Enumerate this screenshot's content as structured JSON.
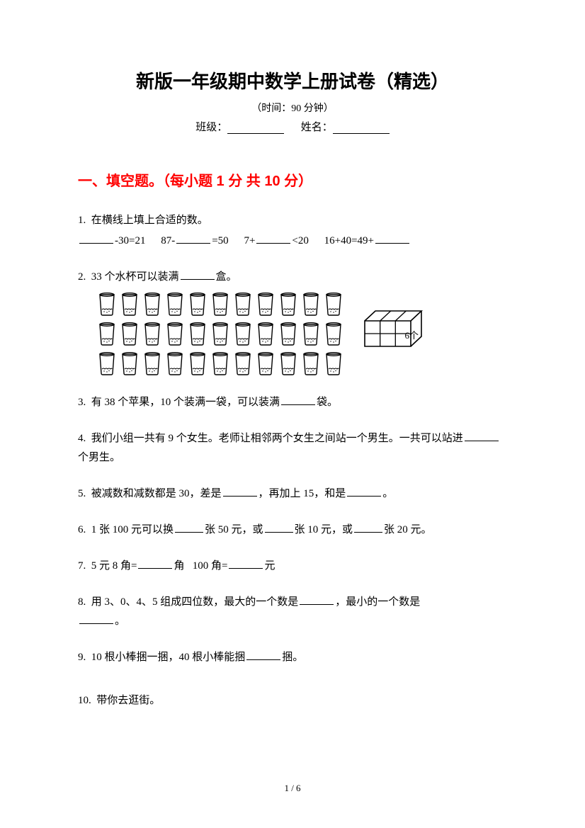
{
  "title": "新版一年级期中数学上册试卷（精选）",
  "time_label": "（时间：90 分钟）",
  "class_label": "班级：",
  "name_label": "姓名：",
  "section1": {
    "header": "一、填空题。（每小题 1 分  共 10 分）"
  },
  "q1": {
    "num": "1.",
    "text": "在横线上填上合适的数。",
    "expr1_a": "-30=21",
    "expr2_a": "87-",
    "expr2_b": "=50",
    "expr3_a": "7+",
    "expr3_b": "<20",
    "expr4_a": "16+40=49+"
  },
  "q2": {
    "num": "2.",
    "text_a": "33 个水杯可以装满",
    "text_b": "盒。",
    "box_label": "6个",
    "cup_rows": [
      11,
      11,
      11
    ]
  },
  "q3": {
    "num": "3.",
    "text_a": "有 38 个苹果，10 个装满一袋，可以装满",
    "text_b": "袋。"
  },
  "q4": {
    "num": "4.",
    "text_a": "我们小组一共有 9 个女生。老师让相邻两个女生之间站一个男生。一共可以站进",
    "text_b": "个男生。"
  },
  "q5": {
    "num": "5.",
    "text_a": "被减数和减数都是 30，差是",
    "text_b": "，再加上 15，和是",
    "text_c": "。"
  },
  "q6": {
    "num": "6.",
    "text_a": "1 张 100 元可以换",
    "text_b": "张 50 元，或",
    "text_c": "张 10 元，或",
    "text_d": "张 20 元。"
  },
  "q7": {
    "num": "7.",
    "text_a": "5 元 8 角=",
    "text_b": "角",
    "text_c": "100 角=",
    "text_d": "元"
  },
  "q8": {
    "num": "8.",
    "text_a": "用 3、0、4、5 组成四位数，最大的一个数是",
    "text_b": "，最小的一个数是",
    "text_c": "。"
  },
  "q9": {
    "num": "9.",
    "text_a": "10 根小棒捆一捆，40 根小棒能捆",
    "text_b": "捆。"
  },
  "q10": {
    "num": "10.",
    "text": "带你去逛街。"
  },
  "page_num": "1 / 6",
  "colors": {
    "text": "#000000",
    "accent": "#ff0000",
    "background": "#ffffff"
  }
}
